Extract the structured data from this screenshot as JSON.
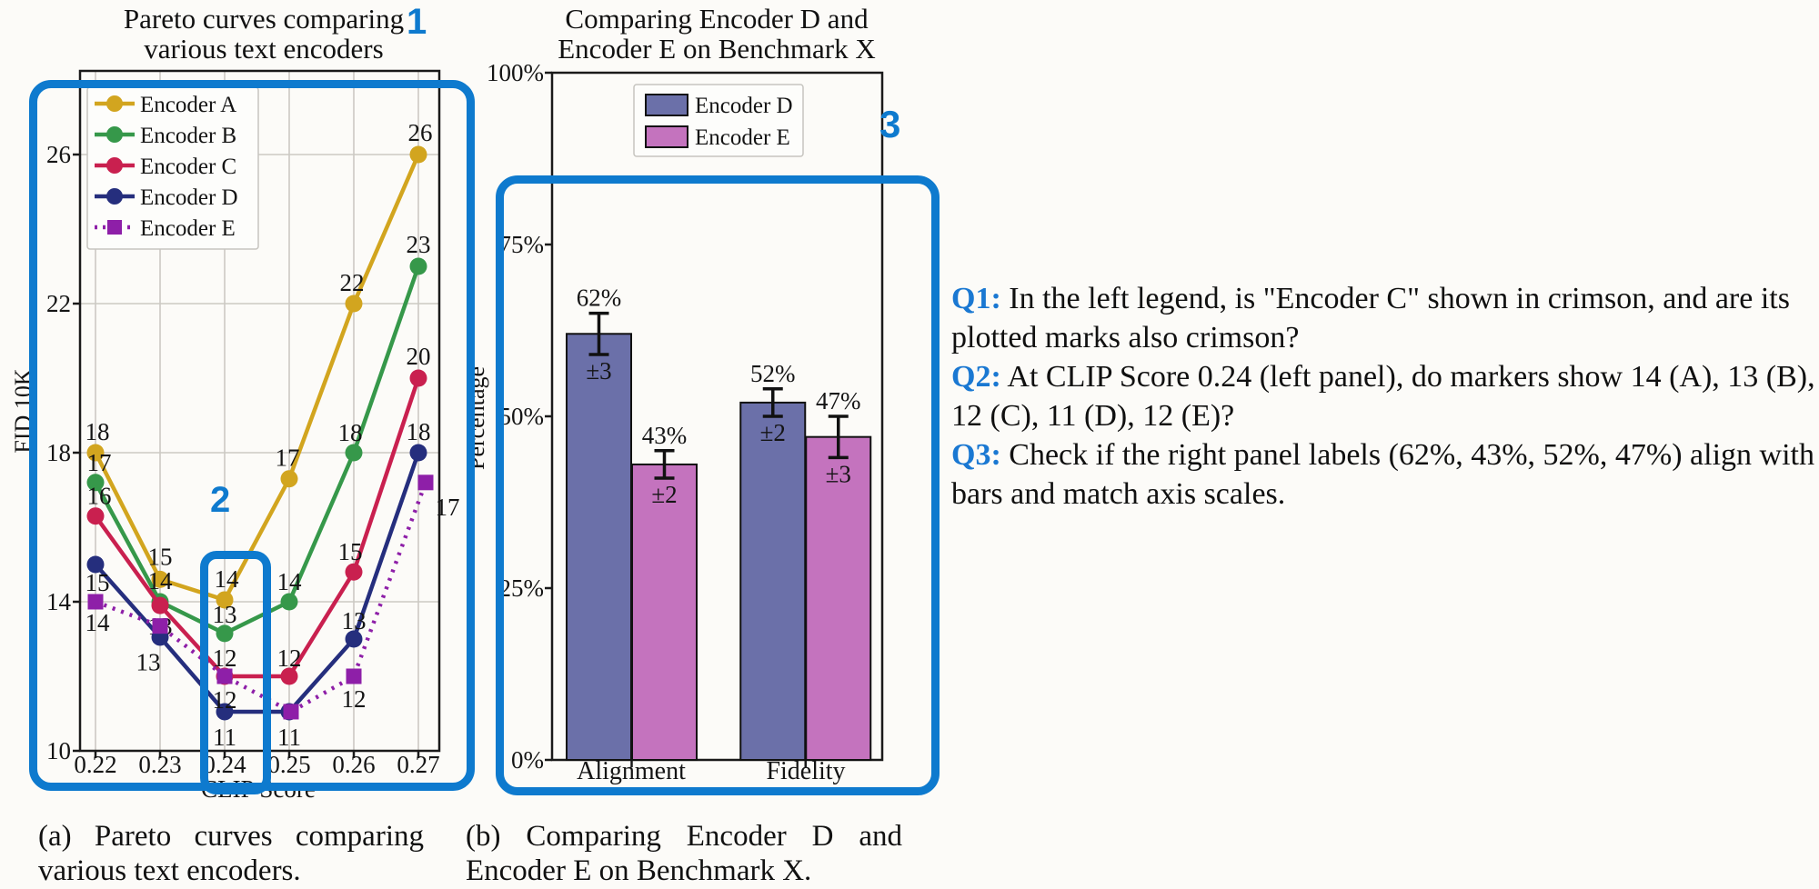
{
  "annotations": {
    "accent_color": "#0e7ace",
    "box1_label": "1",
    "box2_label": "2",
    "box3_label": "3"
  },
  "panel_a": {
    "caption": "(a) Pareto curves comparing various text encoders."
  },
  "panel_b": {
    "caption": "(b) Comparing Encoder D and Encoder E on Benchmark X."
  },
  "qa": {
    "label_color": "#1a78d2",
    "q1": {
      "label": "Q1:",
      "lines": [
        "In the left legend, is \"Encoder C\" shown in crimson, and are its",
        "plotted marks also crimson?"
      ]
    },
    "q2": {
      "label": "Q2:",
      "lines": [
        "At CLIP Score 0.24 (left panel), do markers show 14 (A), 13 (B),",
        "12 (C), 11 (D), 12 (E)?"
      ]
    },
    "q3": {
      "label": "Q3:",
      "lines": [
        "Check if the right panel labels (62%, 43%, 52%, 47%) align with",
        "bars and match axis scales."
      ]
    }
  },
  "chart_data": [
    {
      "type": "line",
      "title_lines": [
        "Pareto curves comparing",
        "various text encoders"
      ],
      "xlabel": "CLIP Score",
      "ylabel": "FID 10K",
      "x": [
        0.22,
        0.23,
        0.24,
        0.25,
        0.26,
        0.27
      ],
      "x_tick_labels": [
        "0.22",
        "0.23",
        "0.24",
        "0.25",
        "0.26",
        "0.27"
      ],
      "y_ticks": [
        10,
        14,
        18,
        22,
        26
      ],
      "ylim": [
        10,
        28.2
      ],
      "grid": true,
      "legend_position": "upper-left",
      "series": [
        {
          "name": "Encoder A",
          "color": "#d2a51f",
          "marker": "circle",
          "line": "solid",
          "values": [
            18,
            15,
            14,
            17,
            22,
            26
          ],
          "plot_values": [
            18,
            14.6,
            14.05,
            17.3,
            22,
            26
          ],
          "labels": [
            "18",
            "15",
            "14",
            "17",
            "22",
            "26"
          ],
          "label_offsets": [
            [
              2,
              -14
            ],
            [
              0,
              -16
            ],
            [
              2,
              -14
            ],
            [
              -2,
              -14
            ],
            [
              -2,
              -14
            ],
            [
              2,
              -15
            ]
          ]
        },
        {
          "name": "Encoder B",
          "color": "#36984a",
          "marker": "circle",
          "line": "solid",
          "values": [
            17,
            14,
            13,
            14,
            18,
            23
          ],
          "plot_values": [
            17.2,
            14,
            13.15,
            14,
            18,
            23
          ],
          "labels": [
            "17",
            "14",
            "13",
            "14",
            "18",
            "23"
          ],
          "label_offsets": [
            [
              4,
              -13
            ],
            [
              0,
              -14
            ],
            [
              0,
              -12
            ],
            [
              0,
              -13
            ],
            [
              -4,
              -13
            ],
            [
              0,
              -15
            ]
          ]
        },
        {
          "name": "Encoder C",
          "color": "#c9204f",
          "marker": "circle",
          "line": "solid",
          "values": [
            16,
            13,
            12,
            12,
            15,
            20
          ],
          "plot_values": [
            16.3,
            13.9,
            12,
            12,
            14.8,
            20
          ],
          "labels": [
            "16",
            "13",
            "12",
            "12",
            "15",
            "20"
          ],
          "label_offsets": [
            [
              4,
              -13
            ],
            [
              0,
              32
            ],
            [
              0,
              -11
            ],
            [
              0,
              -11
            ],
            [
              -4,
              -13
            ],
            [
              0,
              -15
            ]
          ]
        },
        {
          "name": "Encoder D",
          "color": "#252e7d",
          "marker": "circle",
          "line": "solid",
          "values": [
            15,
            13,
            11,
            11,
            13,
            18
          ],
          "plot_values": [
            15,
            13.05,
            11.05,
            11.05,
            13,
            18
          ],
          "labels": [
            "15",
            null,
            "11",
            "11",
            "13",
            "18"
          ],
          "label_offsets": [
            [
              2,
              29
            ],
            null,
            [
              0,
              37
            ],
            [
              0,
              37
            ],
            [
              0,
              -11
            ],
            [
              0,
              -14
            ]
          ]
        },
        {
          "name": "Encoder E",
          "color": "#8e1fa8",
          "marker": "square",
          "line": "dotted",
          "values": [
            14,
            13,
            12,
            11,
            12,
            17
          ],
          "plot_values": [
            14,
            13.35,
            12,
            11.05,
            12,
            17.2
          ],
          "x_shifts": [
            0,
            0,
            0,
            2,
            0,
            8
          ],
          "labels": [
            "14",
            "13",
            "12",
            null,
            "12",
            "17"
          ],
          "label_offsets": [
            [
              2,
              32
            ],
            [
              -13,
              49
            ],
            [
              0,
              35
            ],
            null,
            [
              0,
              34
            ],
            [
              24,
              36
            ]
          ]
        }
      ]
    },
    {
      "type": "bar",
      "title_lines": [
        "Comparing Encoder D and",
        "Encoder E on Benchmark X"
      ],
      "ylabel": "Percentage",
      "categories": [
        "Alignment",
        "Fidelity"
      ],
      "y_ticks": [
        "0%",
        "25%",
        "50%",
        "75%",
        "100%"
      ],
      "y_tick_values": [
        0,
        25,
        50,
        75,
        100
      ],
      "ylim": [
        0,
        100
      ],
      "grid": false,
      "legend_position": "upper-center",
      "series": [
        {
          "name": "Encoder D",
          "color": "#6b70a9",
          "values": [
            62,
            52
          ],
          "errors": [
            3,
            2
          ],
          "value_labels": [
            "62%",
            "52%"
          ],
          "error_labels": [
            "±3",
            "±2"
          ]
        },
        {
          "name": "Encoder E",
          "color": "#c473be",
          "values": [
            43,
            47
          ],
          "errors": [
            2,
            3
          ],
          "value_labels": [
            "43%",
            "47%"
          ],
          "error_labels": [
            "±2",
            "±3"
          ]
        }
      ]
    }
  ]
}
